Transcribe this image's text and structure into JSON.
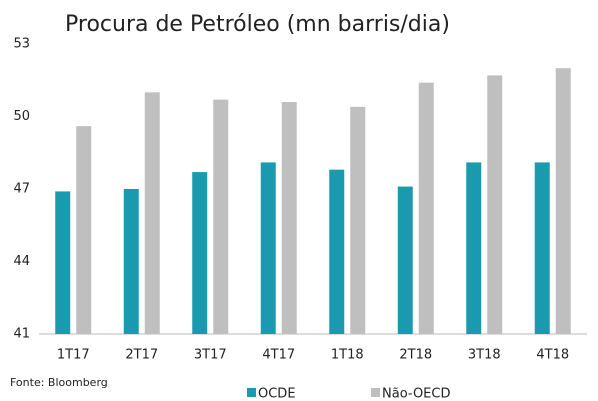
{
  "chart_data": {
    "type": "bar",
    "title": "Procura de Petróleo (mn barris/dia)",
    "categories": [
      "1T17",
      "2T17",
      "3T17",
      "4T17",
      "1T18",
      "2T18",
      "3T18",
      "4T18"
    ],
    "series": [
      {
        "name": "OCDE",
        "color": "#1a9aae",
        "values": [
          46.9,
          47.0,
          47.7,
          48.1,
          47.8,
          47.1,
          48.1,
          48.1
        ]
      },
      {
        "name": "Não-OECD",
        "color": "#bfbfbf",
        "values": [
          49.6,
          51.0,
          50.7,
          50.6,
          50.4,
          51.4,
          51.7,
          52.0
        ]
      }
    ],
    "ylim": [
      41,
      53
    ],
    "yticks": [
      41,
      44,
      47,
      50,
      53
    ],
    "grid": false,
    "legend": "bottom",
    "source": "Fonte: Bloomberg"
  }
}
